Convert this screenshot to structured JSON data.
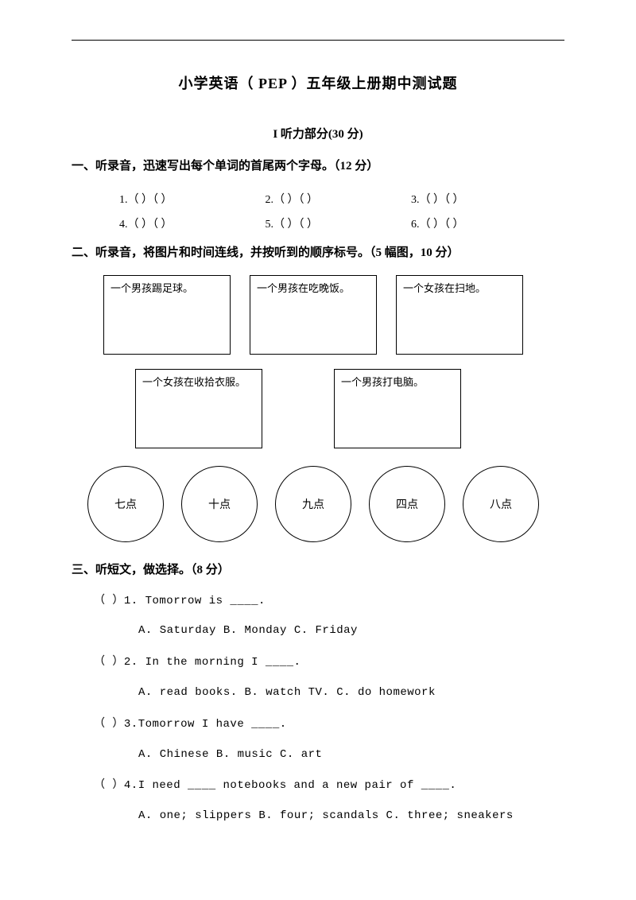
{
  "title": "小学英语（ PEP ）五年级上册期中测试题",
  "part_header": "I 听力部分(30 分)",
  "section1": {
    "heading": "一、听录音，迅速写出每个单词的首尾两个字母。（12 分）",
    "rows": [
      [
        "1.（  ）（  ）",
        "2.（  ）（  ）",
        "3.（  ）（  ）"
      ],
      [
        "4.（  ）（  ）",
        "5.（  ）（  ）",
        "6.（  ）（  ）"
      ]
    ]
  },
  "section2": {
    "heading": "二、听录音，将图片和时间连线，并按听到的顺序标号。（5 幅图，10 分）",
    "boxes_top": [
      "一个男孩踢足球。",
      "一个男孩在吃晚饭。",
      "一个女孩在扫地。"
    ],
    "boxes_bottom": [
      "一个女孩在收拾衣服。",
      "一个男孩打电脑。"
    ],
    "circles": [
      "七点",
      "十点",
      "九点",
      "四点",
      "八点"
    ]
  },
  "section3": {
    "heading": "三、听短文，做选择。（8 分）",
    "questions": [
      {
        "stem": "（   ）1.  Tomorrow is ____.",
        "opts": "A. Saturday    B. Monday    C. Friday"
      },
      {
        "stem": "（   ）2.  In  the  morning  I  ____.",
        "opts": "A. read books.    B. watch TV.    C. do homework"
      },
      {
        "stem": "（   ）3.Tomorrow I have ____.",
        "opts": "A. Chinese    B. music    C. art"
      },
      {
        "stem": "（   ）4.I  need  ____  notebooks and a new pair of ____.",
        "opts": "A. one; slippers   B. four; scandals   C. three; sneakers"
      }
    ]
  }
}
